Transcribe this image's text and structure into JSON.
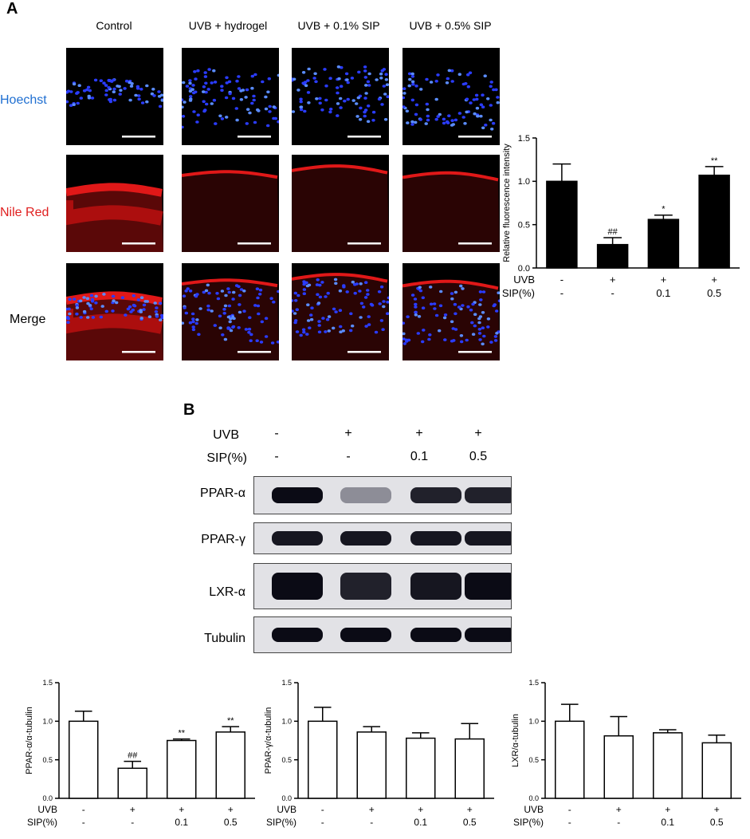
{
  "panel_a": {
    "letter": "A",
    "columns": [
      "Control",
      "UVB + hydrogel",
      "UVB + 0.1% SIP",
      "UVB + 0.5% SIP"
    ],
    "rows": [
      {
        "label": "Hoechst",
        "color": "#1f6fd1"
      },
      {
        "label": "Nile Red",
        "color": "#e02020"
      },
      {
        "label": "Merge",
        "color": "#000000"
      }
    ]
  },
  "panel_b": {
    "letter": "B",
    "blot_conditions": {
      "uvb_label": "UVB",
      "sip_label": "SIP(%)",
      "uvb": [
        "-",
        "+",
        "+",
        "+"
      ],
      "sip": [
        "-",
        "-",
        "0.1",
        "0.5"
      ]
    },
    "blots": [
      {
        "label": "PPAR-α",
        "intensity": [
          0.95,
          0.35,
          0.85,
          0.85
        ]
      },
      {
        "label": "PPAR-γ",
        "intensity": [
          0.9,
          0.9,
          0.9,
          0.9
        ]
      },
      {
        "label": "LXR-α",
        "intensity": [
          0.95,
          0.85,
          0.9,
          0.95
        ]
      },
      {
        "label": "Tubulin",
        "intensity": [
          0.95,
          0.95,
          0.95,
          0.95
        ]
      }
    ]
  },
  "chart_data": [
    {
      "type": "bar",
      "ylabel": "Relative fluorescence intensity",
      "ylim": [
        0,
        1.5
      ],
      "yticks": [
        "0.0",
        "0.5",
        "1.0",
        "1.5"
      ],
      "fill": "#000000",
      "values": [
        1.0,
        0.27,
        0.56,
        1.07
      ],
      "errors": [
        0.2,
        0.08,
        0.05,
        0.1
      ],
      "annotations": [
        "",
        "##",
        "*",
        "**"
      ],
      "cond_labels": [
        "UVB",
        "SIP(%)"
      ],
      "uvb": [
        "-",
        "+",
        "+",
        "+"
      ],
      "sip": [
        "-",
        "-",
        "0.1",
        "0.5"
      ]
    },
    {
      "type": "bar",
      "ylabel": "PPAR-α/α-tubulin",
      "ylim": [
        0,
        1.5
      ],
      "yticks": [
        "0.0",
        "0.5",
        "1.0",
        "1.5"
      ],
      "fill": "#ffffff",
      "values": [
        1.0,
        0.39,
        0.75,
        0.86
      ],
      "errors": [
        0.13,
        0.09,
        0.02,
        0.07
      ],
      "annotations": [
        "",
        "##",
        "**",
        "**"
      ],
      "cond_labels": [
        "UVB",
        "SIP(%)"
      ],
      "uvb": [
        "-",
        "+",
        "+",
        "+"
      ],
      "sip": [
        "-",
        "-",
        "0.1",
        "0.5"
      ]
    },
    {
      "type": "bar",
      "ylabel": "PPAR-γ/α-tubulin",
      "ylim": [
        0,
        1.5
      ],
      "yticks": [
        "0.0",
        "0.5",
        "1.0",
        "1.5"
      ],
      "fill": "#ffffff",
      "values": [
        1.0,
        0.86,
        0.78,
        0.77
      ],
      "errors": [
        0.18,
        0.07,
        0.07,
        0.2
      ],
      "annotations": [
        "",
        "",
        "",
        ""
      ],
      "cond_labels": [
        "UVB",
        "SIP(%)"
      ],
      "uvb": [
        "-",
        "+",
        "+",
        "+"
      ],
      "sip": [
        "-",
        "-",
        "0.1",
        "0.5"
      ]
    },
    {
      "type": "bar",
      "ylabel": "LXR/α-tubulin",
      "ylim": [
        0,
        1.5
      ],
      "yticks": [
        "0.0",
        "0.5",
        "1.0",
        "1.5"
      ],
      "fill": "#ffffff",
      "values": [
        1.0,
        0.81,
        0.85,
        0.72
      ],
      "errors": [
        0.22,
        0.25,
        0.04,
        0.1
      ],
      "annotations": [
        "",
        "",
        "",
        ""
      ],
      "cond_labels": [
        "UVB",
        "SIP(%)"
      ],
      "uvb": [
        "-",
        "+",
        "+",
        "+"
      ],
      "sip": [
        "-",
        "-",
        "0.1",
        "0.5"
      ]
    }
  ]
}
